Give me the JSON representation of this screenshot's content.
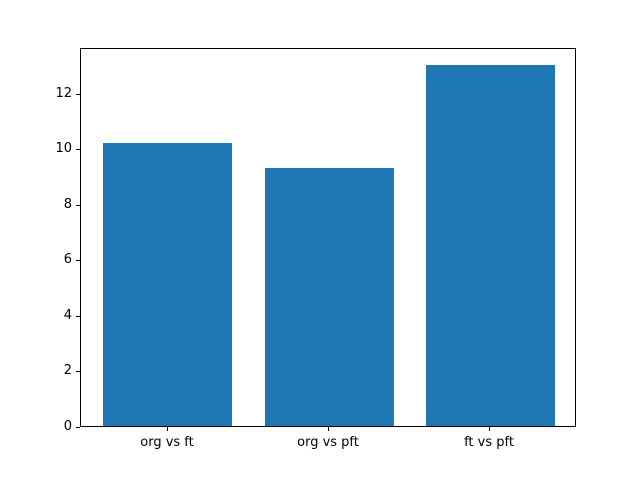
{
  "chart_data": {
    "type": "bar",
    "categories": [
      "org vs ft",
      "org vs pft",
      "ft vs pft"
    ],
    "values": [
      10.2,
      9.3,
      13.0
    ],
    "title": "",
    "xlabel": "",
    "ylabel": "",
    "ylim": [
      0,
      13.65
    ],
    "yticks": [
      0,
      2,
      4,
      6,
      8,
      10,
      12
    ],
    "bar_color": "#1f77b4",
    "background_color": "#ffffff",
    "axis_color": "#000000",
    "grid": false,
    "legend": "none"
  }
}
